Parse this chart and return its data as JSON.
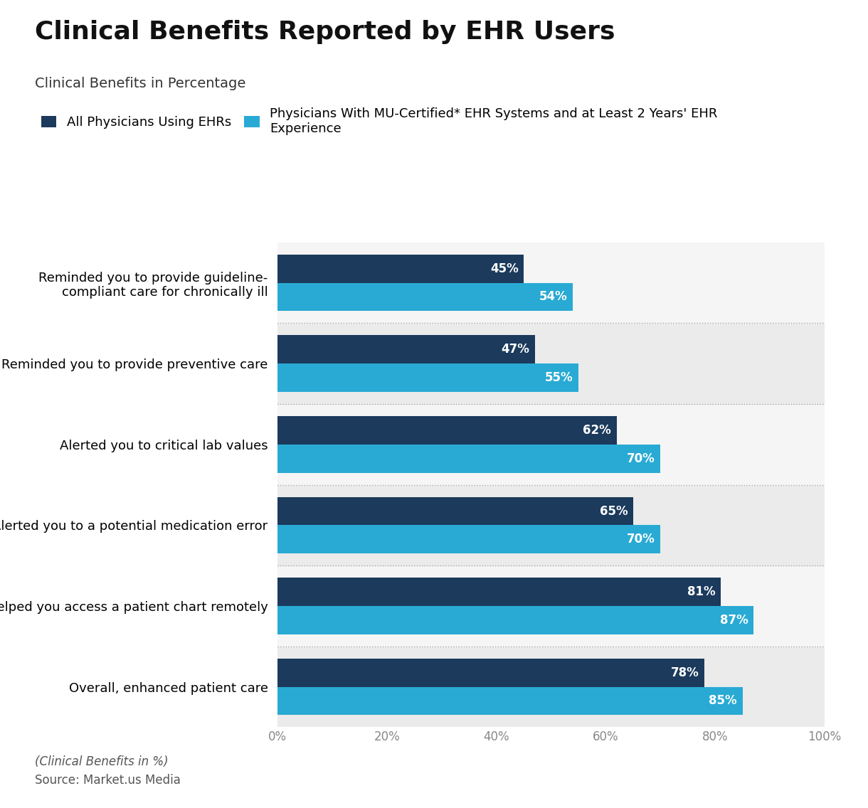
{
  "title": "Clinical Benefits Reported by EHR Users",
  "subtitle": "Clinical Benefits in Percentage",
  "legend_label_dark": "All Physicians Using EHRs",
  "legend_label_light": "Physicians With MU-Certified* EHR Systems and at Least 2 Years' EHR\nExperience",
  "categories": [
    "Overall, enhanced patient care",
    "Helped you access a patient chart remotely",
    "Alerted you to a potential medication error",
    "Alerted you to critical lab values",
    "Reminded you to provide preventive care",
    "Reminded you to provide guideline-\ncompliant care for chronically ill"
  ],
  "values_dark": [
    78,
    81,
    65,
    62,
    47,
    45
  ],
  "values_light": [
    85,
    87,
    70,
    70,
    55,
    54
  ],
  "color_dark": "#1b3a5c",
  "color_light": "#29aad4",
  "bar_height": 0.35,
  "xlim": [
    0,
    100
  ],
  "xticks": [
    0,
    20,
    40,
    60,
    80,
    100
  ],
  "xticklabels": [
    "0%",
    "20%",
    "40%",
    "60%",
    "80%",
    "100%"
  ],
  "footnote": "(Clinical Benefits in %)",
  "source": "Source: Market.us Media",
  "plot_bg_alt1": "#ebebeb",
  "plot_bg_alt2": "#f5f5f5",
  "title_fontsize": 26,
  "subtitle_fontsize": 14,
  "label_fontsize": 13,
  "bar_label_fontsize": 12,
  "tick_fontsize": 12,
  "footnote_fontsize": 12,
  "source_fontsize": 12
}
